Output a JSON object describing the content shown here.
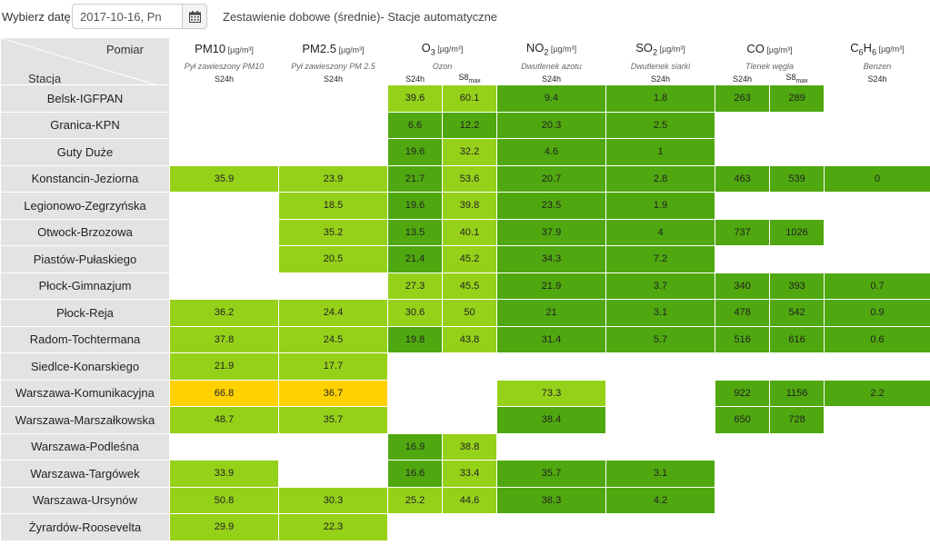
{
  "toolbar": {
    "date_label": "Wybierz datę:",
    "date_value": "2017-10-16, Pn",
    "calendar_icon": "calendar-icon",
    "subtitle": "Zestawienie dobowe (średnie)- Stacje automatyczne"
  },
  "table": {
    "corner_top": "Pomiar",
    "corner_bottom": "Stacja",
    "pollutants": [
      {
        "main": "PM10",
        "sub": "",
        "unit": "[µg/m³]",
        "desc": "Pył zawieszony PM10",
        "cols": [
          "S24h"
        ]
      },
      {
        "main": "PM2.5",
        "sub": "",
        "unit": "[µg/m³]",
        "desc": "Pył zawieszony PM 2.5",
        "cols": [
          "S24h"
        ]
      },
      {
        "main": "O",
        "sub": "3",
        "unit": "[µg/m³]",
        "desc": "Ozon",
        "cols": [
          "S24h",
          "S8max"
        ]
      },
      {
        "main": "NO",
        "sub": "2",
        "unit": "[µg/m³]",
        "desc": "Dwutlenek azotu",
        "cols": [
          "S24h"
        ]
      },
      {
        "main": "SO",
        "sub": "2",
        "unit": "[µg/m³]",
        "desc": "Dwutlenek siarki",
        "cols": [
          "S24h"
        ]
      },
      {
        "main": "CO",
        "sub": "",
        "unit": "[µg/m³]",
        "desc": "Tlenek węgla",
        "cols": [
          "S24h",
          "S8max"
        ]
      },
      {
        "main": "C6H6",
        "sub": "",
        "unit": "[µg/m³]",
        "desc": "Benzen",
        "cols": [
          "S24h"
        ]
      }
    ],
    "colors": {
      "dg": "#4fa80f",
      "lg": "#96d11a",
      "yl": "#ffd100"
    },
    "rows": [
      {
        "station": "Belsk-IGFPAN",
        "cells": [
          [
            "",
            ""
          ],
          [
            "",
            ""
          ],
          [
            "39.6",
            "lg"
          ],
          [
            "60.1",
            "lg"
          ],
          [
            "9.4",
            "dg"
          ],
          [
            "1.8",
            "dg"
          ],
          [
            "263",
            "dg"
          ],
          [
            "289",
            "dg"
          ],
          [
            "",
            ""
          ]
        ]
      },
      {
        "station": "Granica-KPN",
        "cells": [
          [
            "",
            ""
          ],
          [
            "",
            ""
          ],
          [
            "6.6",
            "dg"
          ],
          [
            "12.2",
            "dg"
          ],
          [
            "20.3",
            "dg"
          ],
          [
            "2.5",
            "dg"
          ],
          [
            "",
            ""
          ],
          [
            "",
            ""
          ],
          [
            "",
            ""
          ]
        ]
      },
      {
        "station": "Guty Duże",
        "cells": [
          [
            "",
            ""
          ],
          [
            "",
            ""
          ],
          [
            "19.6",
            "dg"
          ],
          [
            "32.2",
            "lg"
          ],
          [
            "4.6",
            "dg"
          ],
          [
            "1",
            "dg"
          ],
          [
            "",
            ""
          ],
          [
            "",
            ""
          ],
          [
            "",
            ""
          ]
        ]
      },
      {
        "station": "Konstancin-Jeziorna",
        "cells": [
          [
            "35.9",
            "lg"
          ],
          [
            "23.9",
            "lg"
          ],
          [
            "21.7",
            "dg"
          ],
          [
            "53.6",
            "lg"
          ],
          [
            "20.7",
            "dg"
          ],
          [
            "2.8",
            "dg"
          ],
          [
            "463",
            "dg"
          ],
          [
            "539",
            "dg"
          ],
          [
            "0",
            "dg"
          ]
        ]
      },
      {
        "station": "Legionowo-Zegrzyńska",
        "cells": [
          [
            "",
            ""
          ],
          [
            "18.5",
            "lg"
          ],
          [
            "19.6",
            "dg"
          ],
          [
            "39.8",
            "lg"
          ],
          [
            "23.5",
            "dg"
          ],
          [
            "1.9",
            "dg"
          ],
          [
            "",
            ""
          ],
          [
            "",
            ""
          ],
          [
            "",
            ""
          ]
        ]
      },
      {
        "station": "Otwock-Brzozowa",
        "cells": [
          [
            "",
            ""
          ],
          [
            "35.2",
            "lg"
          ],
          [
            "13.5",
            "dg"
          ],
          [
            "40.1",
            "lg"
          ],
          [
            "37.9",
            "dg"
          ],
          [
            "4",
            "dg"
          ],
          [
            "737",
            "dg"
          ],
          [
            "1026",
            "dg"
          ],
          [
            "",
            ""
          ]
        ]
      },
      {
        "station": "Piastów-Pułaskiego",
        "cells": [
          [
            "",
            ""
          ],
          [
            "20.5",
            "lg"
          ],
          [
            "21.4",
            "dg"
          ],
          [
            "45.2",
            "lg"
          ],
          [
            "34.3",
            "dg"
          ],
          [
            "7.2",
            "dg"
          ],
          [
            "",
            ""
          ],
          [
            "",
            ""
          ],
          [
            "",
            ""
          ]
        ]
      },
      {
        "station": "Płock-Gimnazjum",
        "cells": [
          [
            "",
            ""
          ],
          [
            "",
            ""
          ],
          [
            "27.3",
            "lg"
          ],
          [
            "45.5",
            "lg"
          ],
          [
            "21.9",
            "dg"
          ],
          [
            "3.7",
            "dg"
          ],
          [
            "340",
            "dg"
          ],
          [
            "393",
            "dg"
          ],
          [
            "0.7",
            "dg"
          ]
        ]
      },
      {
        "station": "Płock-Reja",
        "cells": [
          [
            "36.2",
            "lg"
          ],
          [
            "24.4",
            "lg"
          ],
          [
            "30.6",
            "lg"
          ],
          [
            "50",
            "lg"
          ],
          [
            "21",
            "dg"
          ],
          [
            "3.1",
            "dg"
          ],
          [
            "478",
            "dg"
          ],
          [
            "542",
            "dg"
          ],
          [
            "0.9",
            "dg"
          ]
        ]
      },
      {
        "station": "Radom-Tochtermana",
        "cells": [
          [
            "37.8",
            "lg"
          ],
          [
            "24.5",
            "lg"
          ],
          [
            "19.8",
            "dg"
          ],
          [
            "43.8",
            "lg"
          ],
          [
            "31.4",
            "dg"
          ],
          [
            "5.7",
            "dg"
          ],
          [
            "516",
            "dg"
          ],
          [
            "616",
            "dg"
          ],
          [
            "0.6",
            "dg"
          ]
        ]
      },
      {
        "station": "Siedlce-Konarskiego",
        "cells": [
          [
            "21.9",
            "lg"
          ],
          [
            "17.7",
            "lg"
          ],
          [
            "",
            ""
          ],
          [
            "",
            ""
          ],
          [
            "",
            ""
          ],
          [
            "",
            ""
          ],
          [
            "",
            ""
          ],
          [
            "",
            ""
          ],
          [
            "",
            ""
          ]
        ]
      },
      {
        "station": "Warszawa-Komunikacyjna",
        "cells": [
          [
            "66.8",
            "yl"
          ],
          [
            "36.7",
            "yl"
          ],
          [
            "",
            ""
          ],
          [
            "",
            ""
          ],
          [
            "73.3",
            "lg"
          ],
          [
            "",
            ""
          ],
          [
            "922",
            "dg"
          ],
          [
            "1156",
            "dg"
          ],
          [
            "2.2",
            "dg"
          ]
        ]
      },
      {
        "station": "Warszawa-Marszałkowska",
        "cells": [
          [
            "48.7",
            "lg"
          ],
          [
            "35.7",
            "lg"
          ],
          [
            "",
            ""
          ],
          [
            "",
            ""
          ],
          [
            "38.4",
            "dg"
          ],
          [
            "",
            ""
          ],
          [
            "650",
            "dg"
          ],
          [
            "728",
            "dg"
          ],
          [
            "",
            ""
          ]
        ]
      },
      {
        "station": "Warszawa-Podleśna",
        "cells": [
          [
            "",
            ""
          ],
          [
            "",
            ""
          ],
          [
            "16.9",
            "dg"
          ],
          [
            "38.8",
            "lg"
          ],
          [
            "",
            ""
          ],
          [
            "",
            ""
          ],
          [
            "",
            ""
          ],
          [
            "",
            ""
          ],
          [
            "",
            ""
          ]
        ]
      },
      {
        "station": "Warszawa-Targówek",
        "cells": [
          [
            "33.9",
            "lg"
          ],
          [
            "",
            ""
          ],
          [
            "16.6",
            "dg"
          ],
          [
            "33.4",
            "lg"
          ],
          [
            "35.7",
            "dg"
          ],
          [
            "3.1",
            "dg"
          ],
          [
            "",
            ""
          ],
          [
            "",
            ""
          ],
          [
            "",
            ""
          ]
        ]
      },
      {
        "station": "Warszawa-Ursynów",
        "cells": [
          [
            "50.8",
            "lg"
          ],
          [
            "30.3",
            "lg"
          ],
          [
            "25.2",
            "lg"
          ],
          [
            "44.6",
            "lg"
          ],
          [
            "38.3",
            "dg"
          ],
          [
            "4.2",
            "dg"
          ],
          [
            "",
            ""
          ],
          [
            "",
            ""
          ],
          [
            "",
            ""
          ]
        ]
      },
      {
        "station": "Żyrardów-Roosevelta",
        "cells": [
          [
            "29.9",
            "lg"
          ],
          [
            "22.3",
            "lg"
          ],
          [
            "",
            ""
          ],
          [
            "",
            ""
          ],
          [
            "",
            ""
          ],
          [
            "",
            ""
          ],
          [
            "",
            ""
          ],
          [
            "",
            ""
          ],
          [
            "",
            ""
          ]
        ]
      }
    ]
  }
}
